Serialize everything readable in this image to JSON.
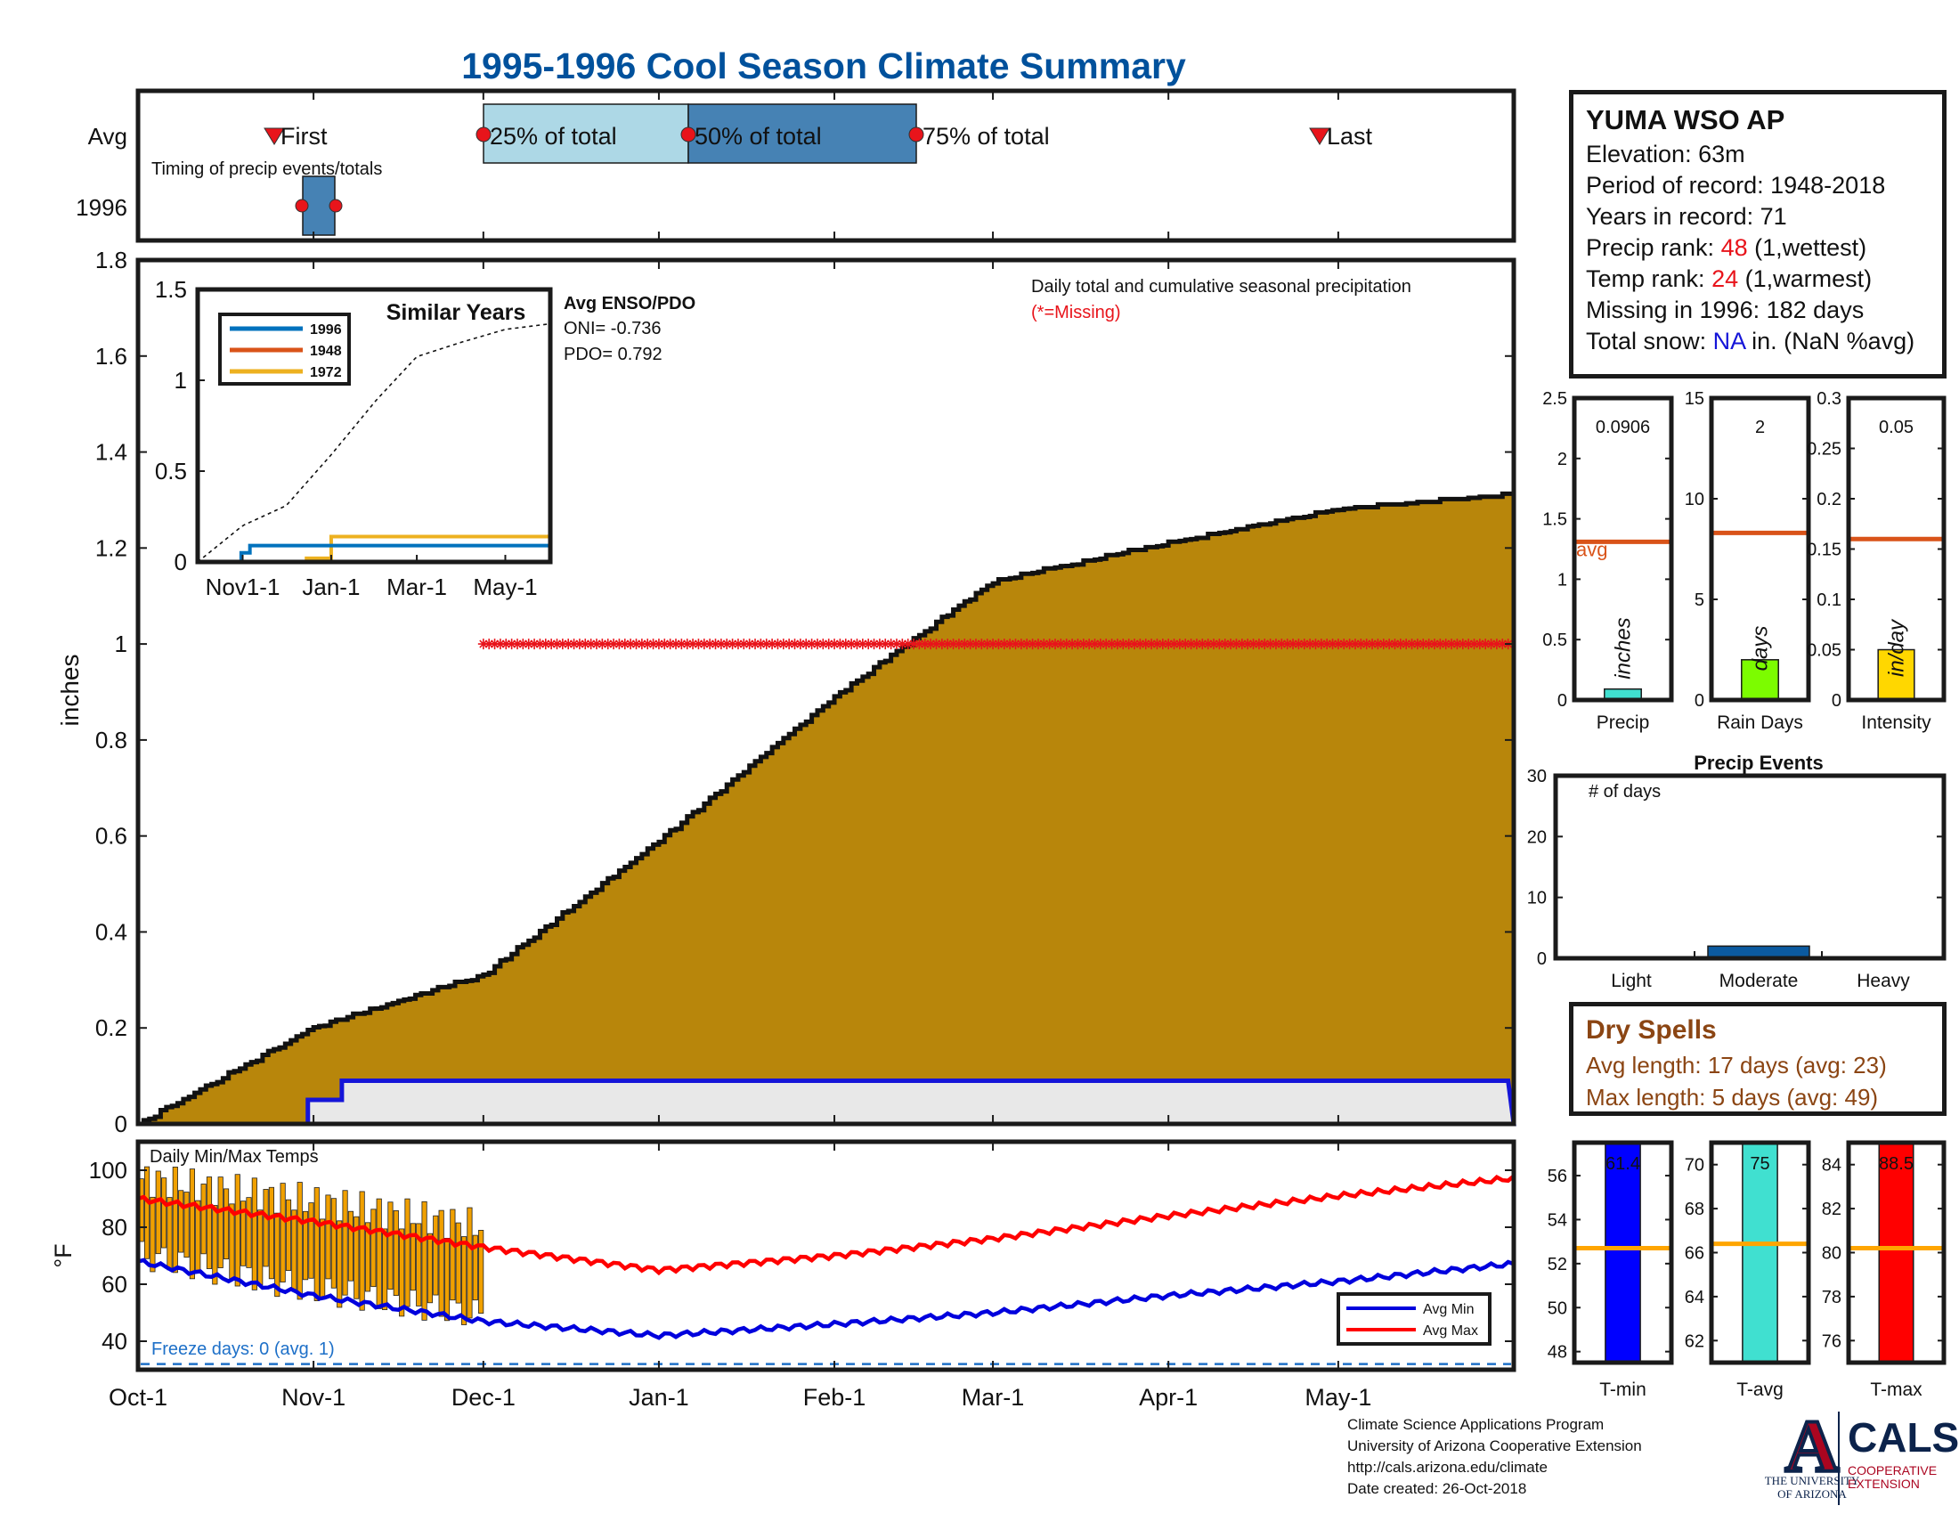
{
  "title": "1995-1996 Cool Season Climate Summary",
  "station": {
    "name": "YUMA WSO AP",
    "elevation": "Elevation: 63m",
    "period": "Period of record: 1948-2018",
    "years": "Years in record: 71",
    "precip_rank_label": "Precip rank: ",
    "precip_rank": "48",
    "precip_rank_note": " (1,wettest)",
    "temp_rank_label": "Temp rank: ",
    "temp_rank": "24",
    "temp_rank_note": " (1,warmest)",
    "missing": "Missing in 1996: 182 days",
    "snow_label": "Total snow: ",
    "snow_value": "NA",
    "snow_note": " in. (NaN %avg)"
  },
  "timing": {
    "row_labels": [
      "Avg",
      "1996"
    ],
    "note": "Timing of precip events/totals",
    "markers": {
      "first": "First",
      "p25": "25% of total",
      "p50": "50% of total",
      "p75": "75% of total",
      "last": "Last"
    }
  },
  "main": {
    "ylabel": "inches",
    "yticks": [
      "0",
      "0.2",
      "0.4",
      "0.6",
      "0.8",
      "1",
      "1.2",
      "1.4",
      "1.6",
      "1.8"
    ],
    "xticks": [
      "Oct-1",
      "Nov-1",
      "Dec-1",
      "Jan-1",
      "Feb-1",
      "Mar-1",
      "Apr-1",
      "May-1"
    ],
    "note": "Daily total and cumulative seasonal precipitation",
    "missing_note": "(*=Missing)"
  },
  "inset": {
    "title": "Similar Years",
    "legend": [
      "1996",
      "1948",
      "1972"
    ],
    "yticks": [
      "0",
      "0.5",
      "1",
      "1.5"
    ],
    "xticks": [
      "Nov1-1",
      "Jan-1",
      "Mar-1",
      "May-1"
    ],
    "enso_title": "Avg ENSO/PDO",
    "oni": "ONI= -0.736",
    "pdo": "PDO= 0.792"
  },
  "bars": {
    "precip": {
      "label": "Precip",
      "value_text": "0.0906",
      "unit": "inches",
      "yticks": [
        "0",
        "0.5",
        "1",
        "1.5",
        "2",
        "2.5"
      ],
      "avg_label": "avg"
    },
    "rain_days": {
      "label": "Rain Days",
      "value_text": "2",
      "unit": "days",
      "yticks": [
        "0",
        "5",
        "10",
        "15"
      ]
    },
    "intensity": {
      "label": "Intensity",
      "value_text": "0.05",
      "unit": "in/day",
      "yticks": [
        "0",
        "0.05",
        "0.1",
        "0.15",
        "0.2",
        "0.25",
        "0.3"
      ]
    }
  },
  "events": {
    "title": "Precip Events",
    "note": "# of days",
    "yticks": [
      "0",
      "10",
      "20",
      "30"
    ],
    "categories": [
      "Light",
      "Moderate",
      "Heavy"
    ]
  },
  "dry": {
    "title": "Dry Spells",
    "avg": "Avg length: 17 days (avg: 23)",
    "max": "Max length: 5 days (avg: 49)"
  },
  "temps": {
    "note": "Daily Min/Max Temps",
    "ylabel": "°F",
    "yticks": [
      "40",
      "60",
      "80",
      "100"
    ],
    "freeze": "Freeze days: 0 (avg. 1)",
    "legend_min": "Avg Min",
    "legend_max": "Avg Max"
  },
  "tbars": {
    "tmin": {
      "label": "T-min",
      "value_text": "61.4",
      "yticks": [
        "48",
        "50",
        "52",
        "54",
        "56"
      ]
    },
    "tavg": {
      "label": "T-avg",
      "value_text": "75",
      "yticks": [
        "62",
        "64",
        "66",
        "68",
        "70"
      ]
    },
    "tmax": {
      "label": "T-max",
      "value_text": "88.5",
      "yticks": [
        "76",
        "78",
        "80",
        "82",
        "84"
      ]
    }
  },
  "footer": {
    "line1": "Climate Science Applications Program",
    "line2": "University of Arizona Cooperative Extension",
    "line3": "http://cals.arizona.edu/climate",
    "line4": " Date created: 26-Oct-2018",
    "ua_a": "A",
    "ua_line1": "THE UNIVERSITY",
    "ua_line2": "OF ARIZONA",
    "cals": "CALS",
    "cals_line1": "COOPERATIVE",
    "cals_line2": "EXTENSION"
  },
  "colors": {
    "title": "#00519c",
    "avg_fill": "#b8860b",
    "season_line": "#1515d8",
    "season_fill": "#e8e8e8",
    "missing": "#e8141b",
    "avg_line": "#d95319",
    "inset_1996": "#0072bd",
    "inset_1948": "#d95319",
    "inset_1972": "#edb120",
    "tmin": "#0000ff",
    "tavg": "#40e0d0",
    "tmax": "#ff0000",
    "temp_range": "#f0a000"
  },
  "chart_data": [
    {
      "type": "area",
      "title": "Daily total and cumulative seasonal precipitation",
      "ylabel": "inches",
      "ylim": [
        0,
        1.8
      ],
      "x_range": [
        "Oct-1",
        "Jun-1"
      ],
      "series": [
        {
          "name": "avg",
          "x": [
            "Oct-1",
            "Nov-1",
            "Dec-1",
            "Jan-1",
            "Feb-1",
            "Mar-1",
            "Apr-1",
            "May-1",
            "May-31"
          ],
          "values": [
            0.0,
            0.2,
            0.31,
            0.59,
            0.89,
            1.13,
            1.21,
            1.28,
            1.31
          ]
        },
        {
          "name": "1996",
          "x": [
            "Oct-1",
            "Oct-31",
            "Nov-6",
            "Dec-1",
            "May-31"
          ],
          "values": [
            0.0,
            0.05,
            0.09,
            0.09,
            0.09
          ]
        }
      ],
      "missing_marker_level": 1.0,
      "missing_range": [
        "Dec-1",
        "May-31"
      ]
    },
    {
      "type": "line",
      "title": "Similar Years",
      "ylim": [
        0,
        1.5
      ],
      "series": [
        {
          "name": "1996",
          "x": [
            "Oct-1",
            "Oct-31",
            "Nov-6",
            "May-31"
          ],
          "values": [
            0.0,
            0.05,
            0.09,
            0.09
          ]
        },
        {
          "name": "1948",
          "x": [
            "Oct-1",
            "May-31"
          ],
          "values": [
            0.0,
            0.0
          ]
        },
        {
          "name": "1972",
          "x": [
            "Oct-1",
            "Dec-15",
            "Jan-1",
            "May-31"
          ],
          "values": [
            0.0,
            0.02,
            0.14,
            0.15
          ]
        }
      ]
    },
    {
      "type": "bar",
      "categories": [
        "Precip",
        "Rain Days",
        "Intensity"
      ],
      "values": [
        0.0906,
        2,
        0.05
      ],
      "averages": [
        1.31,
        8.3,
        0.16
      ],
      "ylims": [
        [
          0,
          2.5
        ],
        [
          0,
          15
        ],
        [
          0,
          0.3
        ]
      ]
    },
    {
      "type": "bar",
      "title": "Precip Events",
      "categories": [
        "Light",
        "Moderate",
        "Heavy"
      ],
      "values": [
        0,
        2,
        0
      ],
      "ylim": [
        0,
        30
      ]
    },
    {
      "type": "line",
      "title": "Daily Min/Max Temps",
      "ylabel": "°F",
      "ylim": [
        30,
        110
      ],
      "series": [
        {
          "name": "Avg Max",
          "x": [
            "Oct-1",
            "Nov-1",
            "Dec-1",
            "Jan-1",
            "Feb-1",
            "Mar-1",
            "Apr-1",
            "May-1",
            "May-31"
          ],
          "values": [
            90,
            82,
            73,
            65,
            70,
            76,
            84,
            91,
            97
          ]
        },
        {
          "name": "Avg Min",
          "x": [
            "Oct-1",
            "Nov-1",
            "Dec-1",
            "Jan-1",
            "Feb-1",
            "Mar-1",
            "Apr-1",
            "May-1",
            "May-31"
          ],
          "values": [
            68,
            56,
            47,
            42,
            46,
            50,
            56,
            61,
            67
          ]
        }
      ],
      "freeze_line": 32
    },
    {
      "type": "bar",
      "categories": [
        "T-min",
        "T-avg",
        "T-max"
      ],
      "values": [
        61.4,
        75,
        88.5
      ],
      "averages": [
        52.7,
        66.4,
        80.2
      ],
      "ylims": [
        [
          47.5,
          57.5
        ],
        [
          61,
          71
        ],
        [
          75,
          85
        ]
      ]
    }
  ]
}
